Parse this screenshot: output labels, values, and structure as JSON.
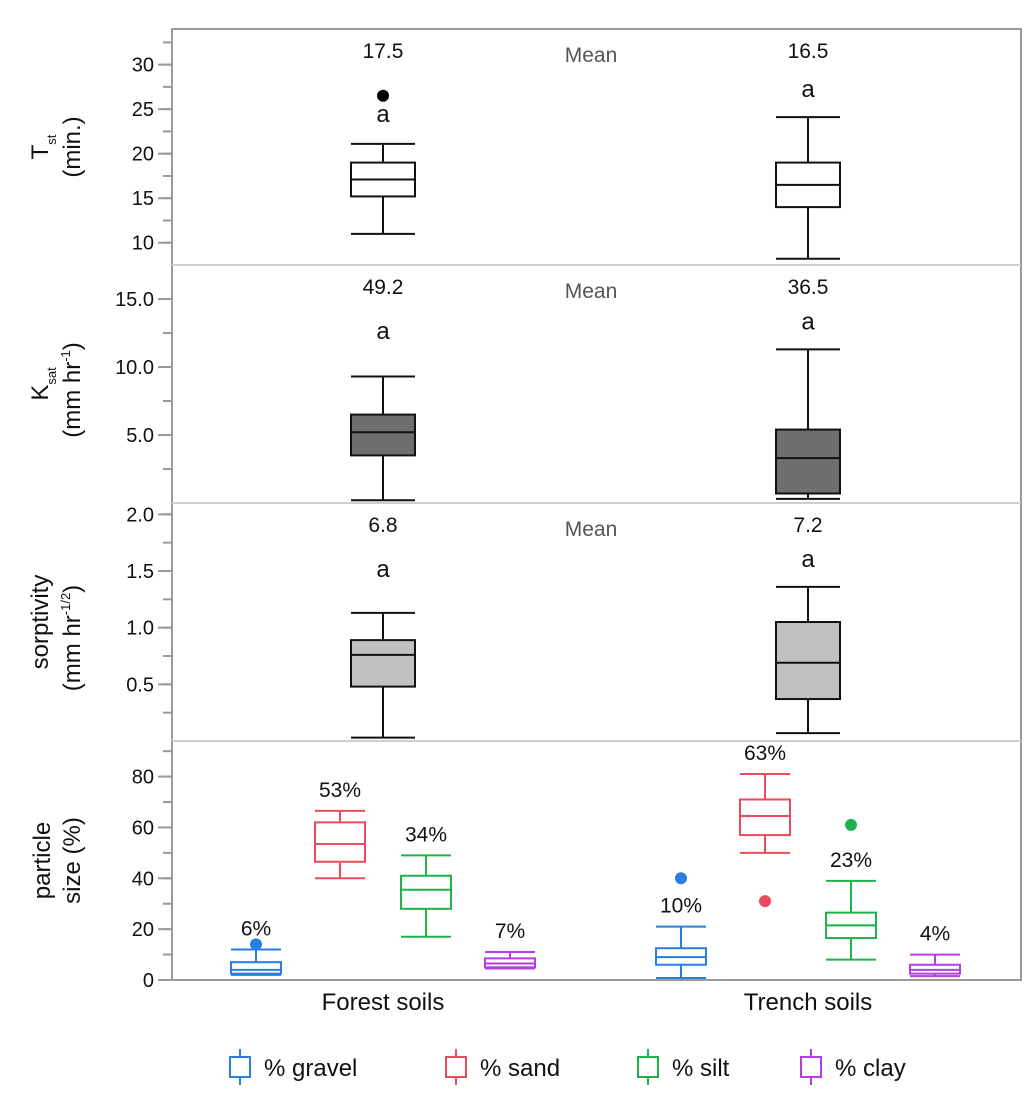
{
  "chart_data": {
    "type": "box",
    "groups": [
      "Forest soils",
      "Trench soils"
    ],
    "panels": [
      {
        "id": "tst",
        "ylabel_lines": [
          "T",
          "st",
          "(min.)"
        ],
        "ylim": [
          7.5,
          34
        ],
        "ticks": [
          10,
          15,
          20,
          25,
          30
        ],
        "tick_labels": [
          "10",
          "15",
          "20",
          "25",
          "30"
        ],
        "mean_label": "Mean",
        "fill": "#ffffff",
        "boxes": [
          {
            "group": "Forest soils",
            "min": 11,
            "q1": 15.2,
            "median": 17.1,
            "q3": 19,
            "max": 21.1,
            "outliers": [
              26.5
            ],
            "mean_text": "17.5",
            "letter": "a"
          },
          {
            "group": "Trench soils",
            "min": 8.2,
            "q1": 14,
            "median": 16.5,
            "q3": 19,
            "max": 24.1,
            "outliers": [],
            "mean_text": "16.5",
            "letter": "a"
          }
        ]
      },
      {
        "id": "ksat",
        "ylabel_lines": [
          "K",
          "sat",
          "(mm hr",
          "-1",
          ")"
        ],
        "ylim": [
          0,
          17.5
        ],
        "ticks": [
          5,
          10,
          15
        ],
        "tick_labels": [
          "5.0",
          "10.0",
          "15.0"
        ],
        "mean_label": "Mean",
        "fill": "#6e6e6e",
        "boxes": [
          {
            "group": "Forest soils",
            "min": 0.2,
            "q1": 3.5,
            "median": 5.2,
            "q3": 6.5,
            "max": 9.3,
            "outliers": [],
            "mean_text": "49.2",
            "letter": "a"
          },
          {
            "group": "Trench soils",
            "min": 0.3,
            "q1": 0.7,
            "median": 3.3,
            "q3": 5.4,
            "max": 11.3,
            "outliers": [],
            "mean_text": "36.5",
            "letter": "a"
          }
        ]
      },
      {
        "id": "sorptivity",
        "ylabel_lines": [
          "sorptivity",
          "(mm hr",
          "-1/2",
          ")"
        ],
        "ylim": [
          0,
          2.1
        ],
        "ticks": [
          0.5,
          1.0,
          1.5,
          2.0
        ],
        "tick_labels": [
          "0.5",
          "1.0",
          "1.5",
          "2.0"
        ],
        "mean_label": "Mean",
        "fill": "#c0c0c0",
        "boxes": [
          {
            "group": "Forest soils",
            "min": 0.03,
            "q1": 0.48,
            "median": 0.76,
            "q3": 0.89,
            "max": 1.13,
            "outliers": [],
            "mean_text": "6.8",
            "letter": "a"
          },
          {
            "group": "Trench soils",
            "min": 0.07,
            "q1": 0.37,
            "median": 0.69,
            "q3": 1.05,
            "max": 1.36,
            "outliers": [],
            "mean_text": "7.2",
            "letter": "a"
          }
        ]
      },
      {
        "id": "particle",
        "ylabel_lines": [
          "particle",
          "size (%)"
        ],
        "ylim": [
          0,
          94
        ],
        "ticks": [
          0,
          20,
          40,
          60,
          80
        ],
        "tick_labels": [
          "0",
          "20",
          "40",
          "60",
          "80"
        ],
        "series": [
          {
            "name": "% gravel",
            "color": "#2a7de1",
            "boxes": [
              {
                "group": "Forest soils",
                "min": 2,
                "q1": 2.5,
                "median": 4,
                "q3": 7,
                "max": 12,
                "outliers": [
                  14
                ],
                "mean_text": "6%"
              },
              {
                "group": "Trench soils",
                "min": 0.8,
                "q1": 6,
                "median": 9,
                "q3": 12.5,
                "max": 21,
                "outliers": [
                  40
                ],
                "mean_text": "10%"
              }
            ]
          },
          {
            "name": "% sand",
            "color": "#ea4b5a",
            "boxes": [
              {
                "group": "Forest soils",
                "min": 40,
                "q1": 46.5,
                "median": 53.5,
                "q3": 62,
                "max": 66.5,
                "outliers": [],
                "mean_text": "53%"
              },
              {
                "group": "Trench soils",
                "min": 50,
                "q1": 57,
                "median": 64.5,
                "q3": 71,
                "max": 81,
                "outliers": [
                  31
                ],
                "mean_text": "63%"
              }
            ]
          },
          {
            "name": "% silt",
            "color": "#1fb14a",
            "boxes": [
              {
                "group": "Forest soils",
                "min": 17,
                "q1": 28,
                "median": 35.5,
                "q3": 41,
                "max": 49,
                "outliers": [],
                "mean_text": "34%"
              },
              {
                "group": "Trench soils",
                "min": 8,
                "q1": 16.5,
                "median": 21.5,
                "q3": 26.5,
                "max": 39,
                "outliers": [
                  61
                ],
                "mean_text": "23%"
              }
            ]
          },
          {
            "name": "% clay",
            "color": "#b43ee0",
            "boxes": [
              {
                "group": "Forest soils",
                "min": 4.5,
                "q1": 5,
                "median": 6.5,
                "q3": 8.5,
                "max": 11,
                "outliers": [],
                "mean_text": "7%"
              },
              {
                "group": "Trench soils",
                "min": 1.5,
                "q1": 2.5,
                "median": 4,
                "q3": 6,
                "max": 10,
                "outliers": [],
                "mean_text": "4%"
              }
            ]
          }
        ]
      }
    ],
    "legend": [
      "% gravel",
      "% sand",
      "% silt",
      "% clay"
    ],
    "legend_position": "bottom-center"
  }
}
